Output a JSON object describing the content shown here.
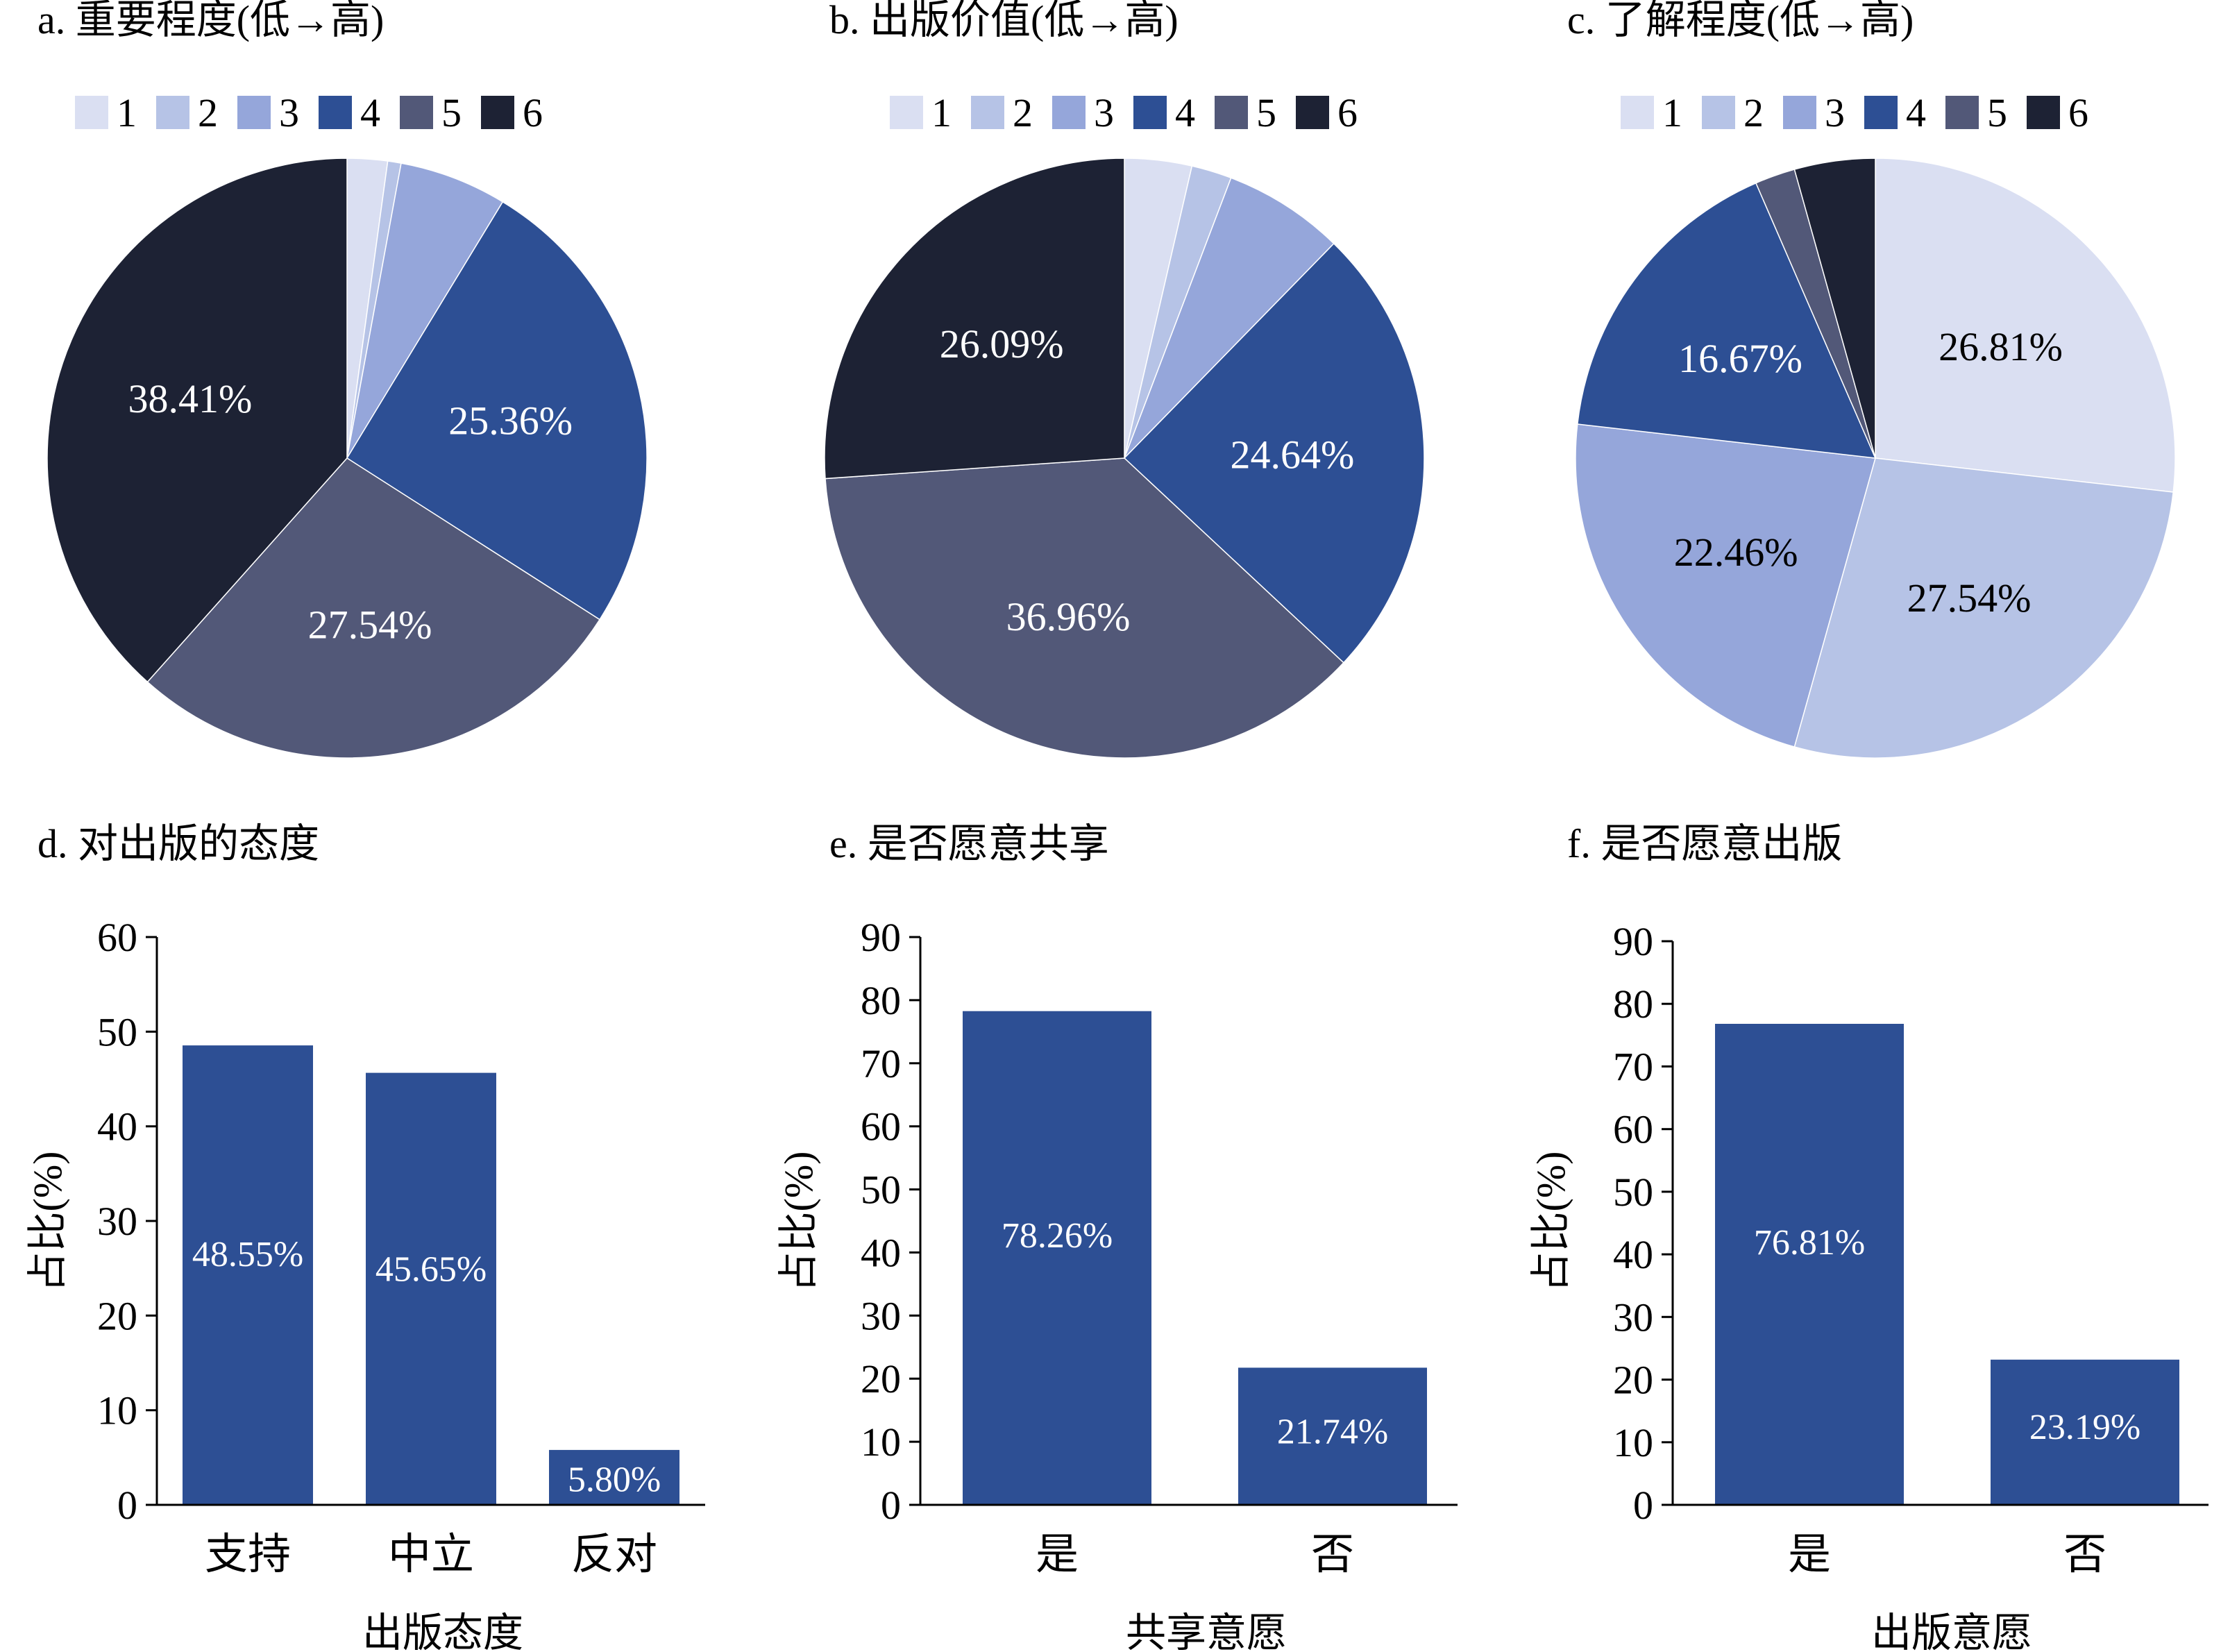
{
  "colors": {
    "s1": "#dadff2",
    "s2": "#b6c3e6",
    "s3": "#95a6da",
    "s4": "#2d4f94",
    "s5": "#525878",
    "s6": "#1d2234",
    "bar": "#2d4f94",
    "axis": "#000000",
    "label_light": "#ffffff",
    "label_dark": "#000000"
  },
  "chart_data": [
    {
      "type": "pie",
      "title": "a. 重要程度(低→高)",
      "legend": [
        "1",
        "2",
        "3",
        "4",
        "5",
        "6"
      ],
      "legend_position": "top",
      "values": [
        2.17,
        0.72,
        5.8,
        25.36,
        27.54,
        38.41
      ],
      "labels": [
        "",
        "",
        "",
        "25.36%",
        "27.54%",
        "38.41%"
      ]
    },
    {
      "type": "pie",
      "title": "b. 出版价值(低→高)",
      "legend": [
        "1",
        "2",
        "3",
        "4",
        "5",
        "6"
      ],
      "legend_position": "top",
      "values": [
        3.62,
        2.17,
        6.52,
        24.64,
        36.96,
        26.09
      ],
      "labels": [
        "",
        "",
        "",
        "24.64%",
        "36.96%",
        "26.09%"
      ]
    },
    {
      "type": "pie",
      "title": "c. 了解程度(低→高)",
      "legend": [
        "1",
        "2",
        "3",
        "4",
        "5",
        "6"
      ],
      "legend_position": "top",
      "values": [
        26.81,
        27.54,
        22.46,
        16.67,
        2.17,
        4.35
      ],
      "labels": [
        "26.81%",
        "27.54%",
        "22.46%",
        "16.67%",
        "",
        ""
      ]
    },
    {
      "type": "bar",
      "title": "d. 对出版的态度",
      "categories": [
        "支持",
        "中立",
        "反对"
      ],
      "values": [
        48.55,
        45.65,
        5.8
      ],
      "labels": [
        "48.55%",
        "45.65%",
        "5.80%"
      ],
      "xlabel": "出版态度",
      "ylabel": "占比(%)",
      "ylim": [
        0,
        60
      ],
      "yticks": [
        0,
        10,
        20,
        30,
        40,
        50,
        60
      ],
      "grid": false
    },
    {
      "type": "bar",
      "title": "e. 是否愿意共享",
      "categories": [
        "是",
        "否"
      ],
      "values": [
        78.26,
        21.74
      ],
      "labels": [
        "78.26%",
        "21.74%"
      ],
      "xlabel": "共享意愿",
      "ylabel": "占比(%)",
      "ylim": [
        0,
        90
      ],
      "yticks": [
        0,
        10,
        20,
        30,
        40,
        50,
        60,
        70,
        80,
        90
      ],
      "grid": false
    },
    {
      "type": "bar",
      "title": "f. 是否愿意出版",
      "categories": [
        "是",
        "否"
      ],
      "values": [
        76.81,
        23.19
      ],
      "labels": [
        "76.81%",
        "23.19%"
      ],
      "xlabel": "出版意愿",
      "ylabel": "占比(%)",
      "ylim": [
        0,
        90
      ],
      "yticks": [
        0,
        10,
        20,
        30,
        40,
        50,
        60,
        70,
        80,
        90
      ],
      "grid": false
    }
  ]
}
